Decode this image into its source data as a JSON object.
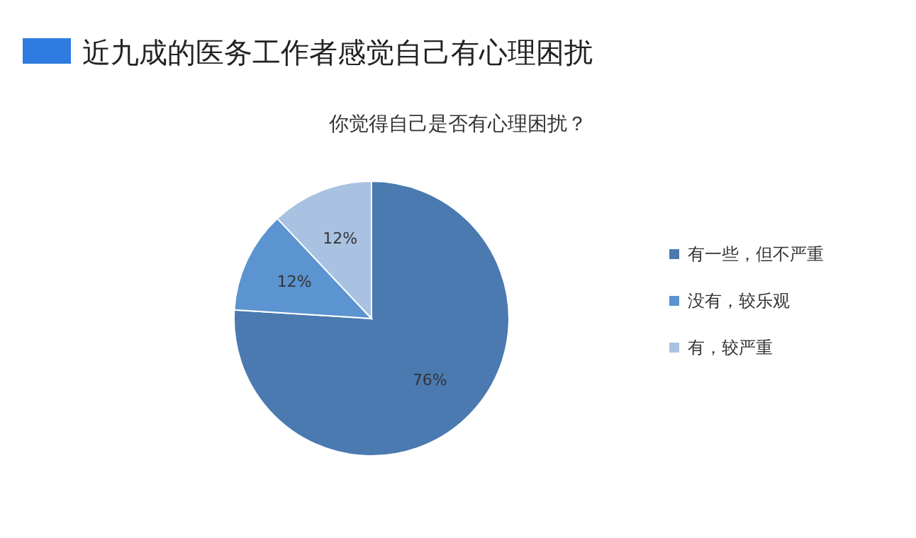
{
  "chart_data": {
    "type": "pie",
    "title": "近九成的医务工作者感觉自己有心理困扰",
    "subtitle": "你觉得自己是否有心理困扰？",
    "categories": [
      "有一些，但不严重",
      "没有，较乐观",
      "有，较严重"
    ],
    "values": [
      76,
      12,
      12
    ],
    "colors": [
      "#4a7ab0",
      "#5b94d0",
      "#a9c2e2"
    ],
    "value_labels": [
      "76%",
      "12%",
      "12%"
    ],
    "legend": "right"
  }
}
